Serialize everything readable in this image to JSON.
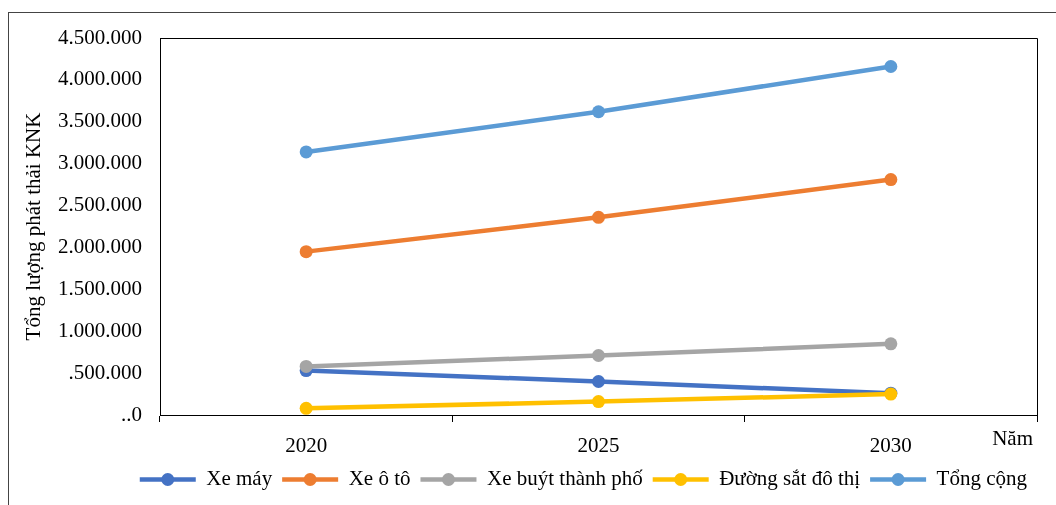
{
  "chart_data": {
    "type": "line",
    "ylabel": "Tổng lượng phát thải KNK",
    "xlabel": "Năm",
    "categories": [
      "2020",
      "2025",
      "2030"
    ],
    "series": [
      {
        "name": "Xe máy",
        "color": "#4472c4",
        "values": [
          530000,
          400000,
          260000
        ]
      },
      {
        "name": "Xe ô tô",
        "color": "#ed7d31",
        "values": [
          1950000,
          2360000,
          2810000
        ]
      },
      {
        "name": "Xe buýt thành phố",
        "color": "#a5a5a5",
        "values": [
          580000,
          710000,
          850000
        ]
      },
      {
        "name": "Đường sắt đô thị",
        "color": "#ffc000",
        "values": [
          80000,
          160000,
          250000
        ]
      },
      {
        "name": "Tổng cộng",
        "color": "#5b9bd5",
        "values": [
          3140000,
          3620000,
          4160000
        ]
      }
    ],
    "ylim": [
      0,
      4500000
    ],
    "yticks": [
      {
        "value": 0,
        "label": "..0"
      },
      {
        "value": 500000,
        "label": ".500.000"
      },
      {
        "value": 1000000,
        "label": "1.000.000"
      },
      {
        "value": 1500000,
        "label": "1.500.000"
      },
      {
        "value": 2000000,
        "label": "2.000.000"
      },
      {
        "value": 2500000,
        "label": "2.500.000"
      },
      {
        "value": 3000000,
        "label": "3.000.000"
      },
      {
        "value": 3500000,
        "label": "3.500.000"
      },
      {
        "value": 4000000,
        "label": "4.000.000"
      },
      {
        "value": 4500000,
        "label": "4.500.000"
      }
    ],
    "grid": false,
    "legend": "bottom",
    "marker": "circle",
    "line_style": "solid"
  }
}
